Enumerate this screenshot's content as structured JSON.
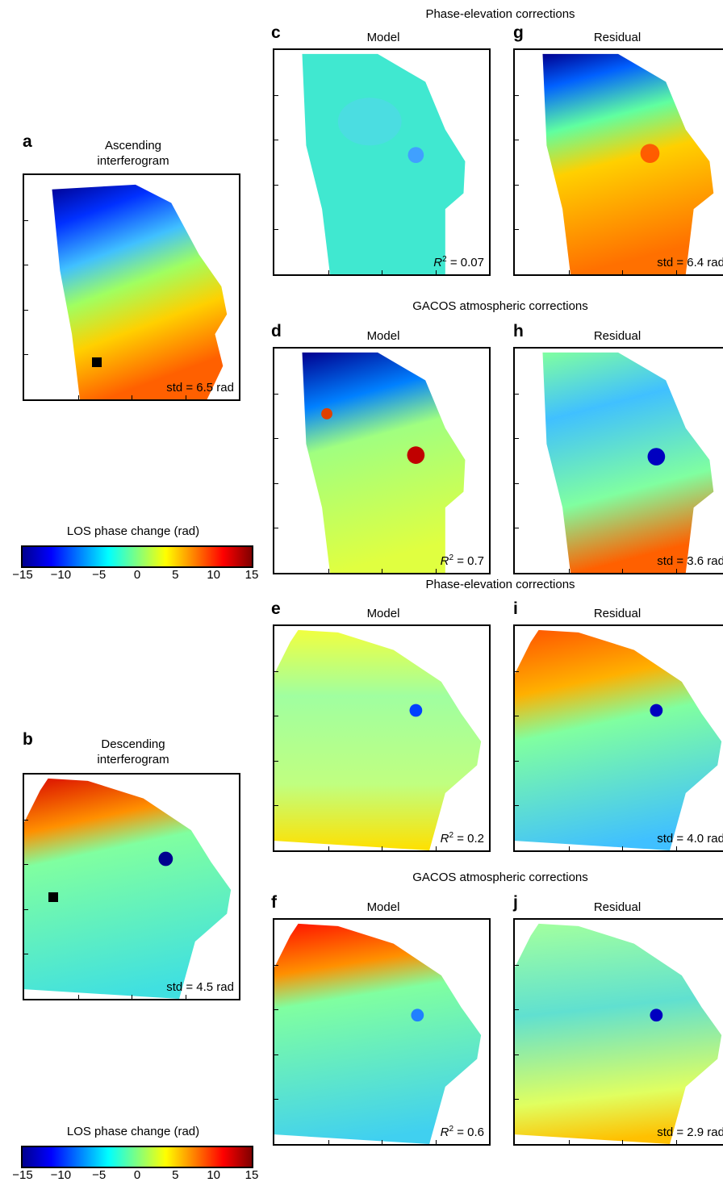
{
  "panels": {
    "a": {
      "letter": "a",
      "title": "Ascending\ninterferogram",
      "stat": "std = 6.5 rad"
    },
    "b": {
      "letter": "b",
      "title": "Descending\ninterferogram",
      "stat": "std = 4.5 rad"
    },
    "c": {
      "letter": "c",
      "title": "Model",
      "stat_label": "R",
      "stat_sup": "2",
      "stat_value": " = 0.07"
    },
    "g": {
      "letter": "g",
      "title": "Residual",
      "stat": "std = 6.4 rad"
    },
    "d": {
      "letter": "d",
      "title": "Model",
      "stat_label": "R",
      "stat_sup": "2",
      "stat_value": " = 0.7"
    },
    "h": {
      "letter": "h",
      "title": "Residual",
      "stat": "std = 3.6 rad"
    },
    "e": {
      "letter": "e",
      "title": "Model",
      "stat_label": "R",
      "stat_sup": "2",
      "stat_value": " = 0.2"
    },
    "i": {
      "letter": "i",
      "title": "Residual",
      "stat": "std = 4.0 rad"
    },
    "f": {
      "letter": "f",
      "title": "Model",
      "stat_label": "R",
      "stat_sup": "2",
      "stat_value": " = 0.6"
    },
    "j": {
      "letter": "j",
      "title": "Residual",
      "stat": "std = 2.9 rad"
    }
  },
  "sections": {
    "top1": "Phase-elevation corrections",
    "top2": "GACOS atmospheric corrections",
    "bot1": "Phase-elevation corrections",
    "bot2": "GACOS atmospheric corrections"
  },
  "colorbar": {
    "title": "LOS phase change (rad)",
    "ticks": [
      "−15",
      "−10",
      "−5",
      "0",
      "5",
      "10",
      "15"
    ],
    "colormap": "jet",
    "range": [
      -15,
      15
    ]
  }
}
